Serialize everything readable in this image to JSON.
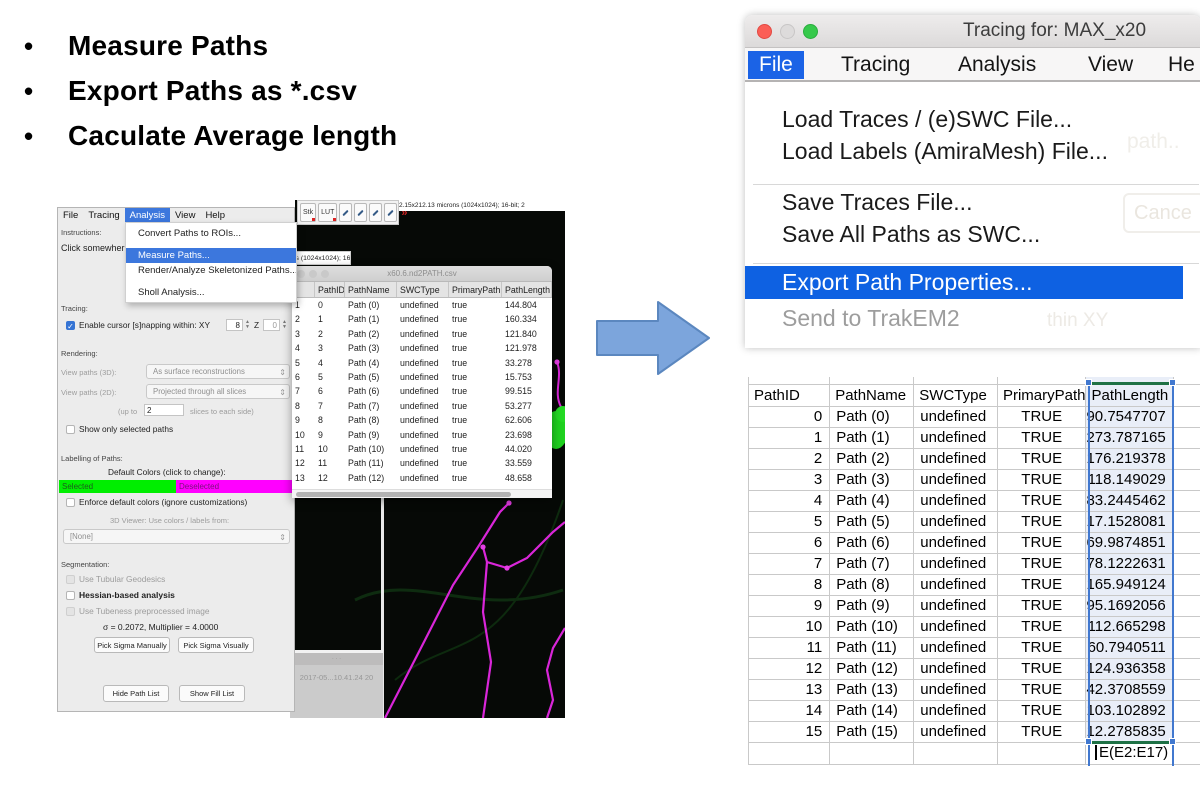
{
  "slide": {
    "bullets": [
      "Measure Paths",
      "Export Paths as *.csv",
      "Caculate Average length"
    ]
  },
  "left_app": {
    "menubar": [
      "File",
      "Tracing",
      "Analysis",
      "View",
      "Help"
    ],
    "active_menu": "Analysis",
    "analysis_menu": {
      "items": [
        "Convert Paths to ROIs...",
        "Measure Paths...",
        "Render/Analyze Skeletonized Paths...",
        "Sholl Analysis..."
      ],
      "highlighted": "Measure Paths..."
    },
    "toolbar": {
      "stk_label": "Stk",
      "lut_label": "LUT",
      "more_label": "»"
    },
    "info_bar": "2.15x212.13 microns (1024x1024); 16-bit; 2",
    "info_snippet": "ons (1024x1024); 16-bit",
    "dialog": {
      "instructions_label": "Instructions:",
      "instructions_text": "Click somewher",
      "finish_button": "Finis",
      "tracing_label": "Tracing:",
      "snapping_label": "Enable cursor [s]napping within: XY",
      "snap_xy": "8",
      "snap_z_label": "Z",
      "snap_z": "0",
      "rendering_label": "Rendering:",
      "view3d_label": "View paths (3D):",
      "view3d_value": "As surface reconstructions",
      "view2d_label": "View paths (2D):",
      "view2d_value": "Projected through all slices",
      "upto_label": "(up to",
      "upto_value": "2",
      "upto_suffix": "slices to each side)",
      "show_selected": "Show only selected paths",
      "labelling_label": "Labelling of Paths:",
      "default_colors": "Default Colors (click to change):",
      "selected_label": "Selected",
      "deselected_label": "Deselected",
      "enforce_label": "Enforce default colors (ignore customizations)",
      "viewer3d_label": "3D Viewer: Use colors / labels from:",
      "viewer3d_value": "[None]",
      "segmentation_label": "Segmentation:",
      "tubular_label": "Use Tubular Geodesics",
      "hessian_label": "Hessian-based analysis",
      "tubeness_label": "Use Tubeness preprocessed image",
      "sigma_line": "σ = 0.2072, Multiplier = 4.0000",
      "pick_manual": "Pick Sigma Manually",
      "pick_visual": "Pick Sigma Visually",
      "hide_path_list": "Hide Path List",
      "show_fill_list": "Show Fill List"
    },
    "csv_window": {
      "title": "x60.6.nd2PATH.csv",
      "columns": [
        "",
        "PathID",
        "PathName",
        "SWCType",
        "PrimaryPath",
        "PathLength"
      ],
      "rows": [
        [
          "1",
          "0",
          "Path (0)",
          "undefined",
          "true",
          "144.804"
        ],
        [
          "2",
          "1",
          "Path (1)",
          "undefined",
          "true",
          "160.334"
        ],
        [
          "3",
          "2",
          "Path (2)",
          "undefined",
          "true",
          "121.840"
        ],
        [
          "4",
          "3",
          "Path (3)",
          "undefined",
          "true",
          "121.978"
        ],
        [
          "5",
          "4",
          "Path (4)",
          "undefined",
          "true",
          "33.278"
        ],
        [
          "6",
          "5",
          "Path (5)",
          "undefined",
          "true",
          "15.753"
        ],
        [
          "7",
          "6",
          "Path (6)",
          "undefined",
          "true",
          "99.515"
        ],
        [
          "8",
          "7",
          "Path (7)",
          "undefined",
          "true",
          "53.277"
        ],
        [
          "9",
          "8",
          "Path (8)",
          "undefined",
          "true",
          "62.606"
        ],
        [
          "10",
          "9",
          "Path (9)",
          "undefined",
          "true",
          "23.698"
        ],
        [
          "11",
          "10",
          "Path (10)",
          "undefined",
          "true",
          "44.020"
        ],
        [
          "12",
          "11",
          "Path (11)",
          "undefined",
          "true",
          "33.559"
        ],
        [
          "13",
          "12",
          "Path (12)",
          "undefined",
          "true",
          "48.658"
        ]
      ]
    },
    "timestamp_text": "2017-05...10.41.24  20"
  },
  "right_app": {
    "window_title": "Tracing for: MAX_x20",
    "menubar": [
      "File",
      "Tracing",
      "Analysis",
      "View",
      "He"
    ],
    "active_menu": "File",
    "file_menu": [
      {
        "label": "Load Traces / (e)SWC File...",
        "state": "normal"
      },
      {
        "label": "Load Labels (AmiraMesh) File...",
        "state": "normal"
      },
      {
        "label": "",
        "state": "separator"
      },
      {
        "label": "Save Traces File...",
        "state": "normal"
      },
      {
        "label": "Save All Paths as SWC...",
        "state": "normal"
      },
      {
        "label": "",
        "state": "separator"
      },
      {
        "label": "Export Path Properties...",
        "state": "highlighted"
      },
      {
        "label": "Send to TrakEM2",
        "state": "disabled"
      }
    ],
    "ghost_texts": {
      "cancel": "Cance",
      "path": "path..",
      "within": "thin XY"
    }
  },
  "spreadsheet": {
    "columns": [
      "PathID",
      "PathName",
      "SWCType",
      "PrimaryPath",
      "PathLength"
    ],
    "rows": [
      [
        "0",
        "Path (0)",
        "undefined",
        "TRUE",
        "90.7547707"
      ],
      [
        "1",
        "Path (1)",
        "undefined",
        "TRUE",
        "273.787165"
      ],
      [
        "2",
        "Path (2)",
        "undefined",
        "TRUE",
        "176.219378"
      ],
      [
        "3",
        "Path (3)",
        "undefined",
        "TRUE",
        "118.149029"
      ],
      [
        "4",
        "Path (4)",
        "undefined",
        "TRUE",
        "83.2445462"
      ],
      [
        "5",
        "Path (5)",
        "undefined",
        "TRUE",
        "17.1528081"
      ],
      [
        "6",
        "Path (6)",
        "undefined",
        "TRUE",
        "69.9874851"
      ],
      [
        "7",
        "Path (7)",
        "undefined",
        "TRUE",
        "78.1222631"
      ],
      [
        "8",
        "Path (8)",
        "undefined",
        "TRUE",
        "165.949124"
      ],
      [
        "9",
        "Path (9)",
        "undefined",
        "TRUE",
        "95.1692056"
      ],
      [
        "10",
        "Path (10)",
        "undefined",
        "TRUE",
        "112.665298"
      ],
      [
        "11",
        "Path (11)",
        "undefined",
        "TRUE",
        "60.7940511"
      ],
      [
        "12",
        "Path (12)",
        "undefined",
        "TRUE",
        "124.936358"
      ],
      [
        "13",
        "Path (13)",
        "undefined",
        "TRUE",
        "42.3708559"
      ],
      [
        "14",
        "Path (14)",
        "undefined",
        "TRUE",
        "103.102892"
      ],
      [
        "15",
        "Path (15)",
        "undefined",
        "TRUE",
        "12.2785835"
      ]
    ],
    "formula_cell": "E(E2:E17)"
  },
  "colors": {
    "menu_highlight": "#0e61e2",
    "left_menu_highlight": "#3c77dd",
    "selection_blue": "#4178cf",
    "excel_green": "#1e7145",
    "selected_green": "#00ee00",
    "deselected_magenta": "#ff00ff",
    "arrow_fill": "#7ca5dc",
    "arrow_border": "#5b87bf"
  }
}
